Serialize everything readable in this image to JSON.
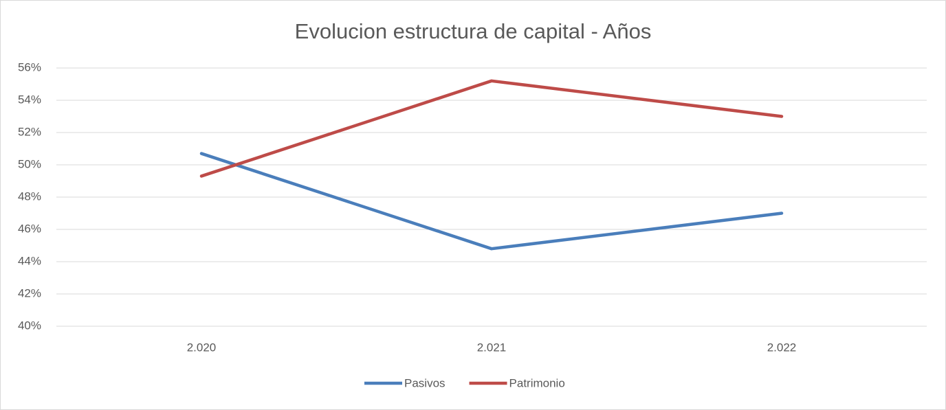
{
  "chart_data": {
    "type": "line",
    "title": "Evolucion estructura de capital - Años",
    "categories": [
      "2.020",
      "2.021",
      "2.022"
    ],
    "series": [
      {
        "name": "Pasivos",
        "color": "#4a7ebb",
        "values": [
          50.7,
          44.8,
          47.0
        ]
      },
      {
        "name": "Patrimonio",
        "color": "#be4b48",
        "values": [
          49.3,
          55.2,
          53.0
        ]
      }
    ],
    "ylim": [
      40,
      56
    ],
    "yticks": [
      {
        "value": 40,
        "label": "40%"
      },
      {
        "value": 42,
        "label": "42%"
      },
      {
        "value": 44,
        "label": "44%"
      },
      {
        "value": 46,
        "label": "46%"
      },
      {
        "value": 48,
        "label": "48%"
      },
      {
        "value": 50,
        "label": "50%"
      },
      {
        "value": 52,
        "label": "52%"
      },
      {
        "value": 54,
        "label": "54%"
      },
      {
        "value": 56,
        "label": "56%"
      }
    ],
    "grid": true,
    "legend": "bottom"
  }
}
